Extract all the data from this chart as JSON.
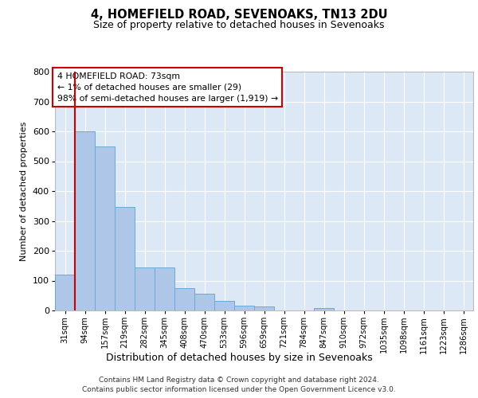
{
  "title": "4, HOMEFIELD ROAD, SEVENOAKS, TN13 2DU",
  "subtitle": "Size of property relative to detached houses in Sevenoaks",
  "xlabel": "Distribution of detached houses by size in Sevenoaks",
  "ylabel": "Number of detached properties",
  "categories": [
    "31sqm",
    "94sqm",
    "157sqm",
    "219sqm",
    "282sqm",
    "345sqm",
    "408sqm",
    "470sqm",
    "533sqm",
    "596sqm",
    "659sqm",
    "721sqm",
    "784sqm",
    "847sqm",
    "910sqm",
    "972sqm",
    "1035sqm",
    "1098sqm",
    "1161sqm",
    "1223sqm",
    "1286sqm"
  ],
  "values": [
    120,
    600,
    550,
    348,
    145,
    145,
    75,
    55,
    33,
    15,
    13,
    0,
    0,
    8,
    0,
    0,
    0,
    0,
    0,
    0,
    0
  ],
  "bar_color": "#aec6e8",
  "bar_edge_color": "#6aaad4",
  "highlight_line_color": "#cc0000",
  "annotation_text": "4 HOMEFIELD ROAD: 73sqm\n← 1% of detached houses are smaller (29)\n98% of semi-detached houses are larger (1,919) →",
  "annotation_box_facecolor": "#ffffff",
  "annotation_box_edgecolor": "#cc0000",
  "ylim": [
    0,
    800
  ],
  "yticks": [
    0,
    100,
    200,
    300,
    400,
    500,
    600,
    700,
    800
  ],
  "plot_bg_color": "#dce8f5",
  "footer_line1": "Contains HM Land Registry data © Crown copyright and database right 2024.",
  "footer_line2": "Contains public sector information licensed under the Open Government Licence v3.0."
}
